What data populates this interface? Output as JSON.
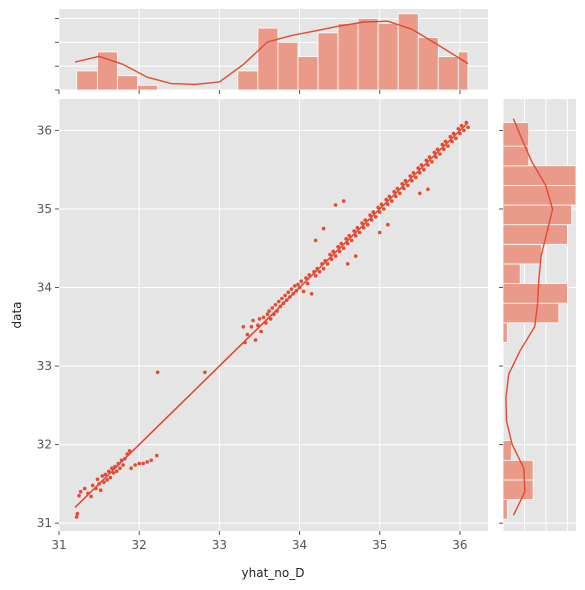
{
  "chart_data": {
    "type": "scatter",
    "title": "",
    "xlabel": "yhat_no_D",
    "ylabel": "data",
    "xlim": [
      31.0,
      36.35
    ],
    "ylim": [
      30.9,
      36.4
    ],
    "xticks": [
      "31",
      "32",
      "33",
      "34",
      "35",
      "36"
    ],
    "yticks": [
      "31",
      "32",
      "33",
      "34",
      "35",
      "36"
    ],
    "grid": true,
    "background": "#e5e5e5",
    "grid_color": "#ffffff",
    "point_color": "#e24a33",
    "bar_color": "#e99a89",
    "regression_line": {
      "x": [
        31.2,
        36.1
      ],
      "y": [
        31.2,
        36.1
      ]
    },
    "points": [
      [
        31.22,
        31.08
      ],
      [
        31.23,
        31.12
      ],
      [
        31.25,
        31.35
      ],
      [
        31.27,
        31.4
      ],
      [
        31.32,
        31.44
      ],
      [
        31.36,
        31.38
      ],
      [
        31.4,
        31.34
      ],
      [
        31.42,
        31.48
      ],
      [
        31.46,
        31.44
      ],
      [
        31.48,
        31.56
      ],
      [
        31.5,
        31.5
      ],
      [
        31.52,
        31.42
      ],
      [
        31.54,
        31.6
      ],
      [
        31.56,
        31.52
      ],
      [
        31.58,
        31.62
      ],
      [
        31.6,
        31.55
      ],
      [
        31.62,
        31.66
      ],
      [
        31.64,
        31.58
      ],
      [
        31.66,
        31.7
      ],
      [
        31.68,
        31.64
      ],
      [
        31.7,
        31.72
      ],
      [
        31.72,
        31.66
      ],
      [
        31.74,
        31.76
      ],
      [
        31.76,
        31.7
      ],
      [
        31.78,
        31.8
      ],
      [
        31.8,
        31.74
      ],
      [
        31.82,
        31.82
      ],
      [
        31.85,
        31.88
      ],
      [
        31.88,
        31.92
      ],
      [
        31.9,
        31.7
      ],
      [
        31.95,
        31.74
      ],
      [
        32.0,
        31.76
      ],
      [
        32.05,
        31.76
      ],
      [
        32.1,
        31.78
      ],
      [
        32.15,
        31.8
      ],
      [
        32.22,
        31.86
      ],
      [
        32.23,
        32.92
      ],
      [
        32.82,
        32.92
      ],
      [
        33.3,
        33.5
      ],
      [
        33.32,
        33.3
      ],
      [
        33.35,
        33.4
      ],
      [
        33.4,
        33.5
      ],
      [
        33.42,
        33.58
      ],
      [
        33.45,
        33.33
      ],
      [
        33.48,
        33.52
      ],
      [
        33.5,
        33.6
      ],
      [
        33.52,
        33.44
      ],
      [
        33.55,
        33.62
      ],
      [
        33.58,
        33.55
      ],
      [
        33.6,
        33.66
      ],
      [
        33.62,
        33.7
      ],
      [
        33.64,
        33.6
      ],
      [
        33.66,
        33.74
      ],
      [
        33.68,
        33.66
      ],
      [
        33.7,
        33.78
      ],
      [
        33.72,
        33.7
      ],
      [
        33.74,
        33.82
      ],
      [
        33.76,
        33.76
      ],
      [
        33.78,
        33.86
      ],
      [
        33.8,
        33.8
      ],
      [
        33.82,
        33.9
      ],
      [
        33.84,
        33.84
      ],
      [
        33.86,
        33.94
      ],
      [
        33.88,
        33.88
      ],
      [
        33.9,
        33.98
      ],
      [
        33.92,
        33.92
      ],
      [
        33.94,
        34.02
      ],
      [
        33.96,
        33.96
      ],
      [
        33.98,
        34.04
      ],
      [
        34.0,
        34.0
      ],
      [
        34.02,
        34.08
      ],
      [
        34.05,
        33.95
      ],
      [
        34.08,
        34.12
      ],
      [
        34.1,
        34.05
      ],
      [
        34.12,
        34.16
      ],
      [
        34.15,
        33.92
      ],
      [
        34.18,
        34.2
      ],
      [
        34.2,
        34.15
      ],
      [
        34.22,
        34.24
      ],
      [
        34.25,
        34.2
      ],
      [
        34.28,
        34.3
      ],
      [
        34.3,
        34.24
      ],
      [
        34.32,
        34.34
      ],
      [
        34.35,
        34.3
      ],
      [
        34.38,
        34.42
      ],
      [
        34.4,
        34.36
      ],
      [
        34.42,
        34.46
      ],
      [
        34.45,
        34.4
      ],
      [
        34.48,
        34.52
      ],
      [
        34.5,
        34.46
      ],
      [
        34.52,
        34.56
      ],
      [
        34.55,
        34.5
      ],
      [
        34.58,
        34.62
      ],
      [
        34.6,
        34.56
      ],
      [
        34.62,
        34.66
      ],
      [
        34.65,
        34.6
      ],
      [
        34.68,
        34.72
      ],
      [
        34.7,
        34.66
      ],
      [
        34.72,
        34.76
      ],
      [
        34.75,
        34.7
      ],
      [
        34.78,
        34.82
      ],
      [
        34.8,
        34.76
      ],
      [
        34.82,
        34.86
      ],
      [
        34.85,
        34.8
      ],
      [
        34.88,
        34.92
      ],
      [
        34.9,
        34.86
      ],
      [
        34.92,
        34.96
      ],
      [
        34.95,
        34.9
      ],
      [
        34.98,
        35.02
      ],
      [
        35.0,
        34.96
      ],
      [
        35.02,
        35.06
      ],
      [
        35.05,
        35.0
      ],
      [
        35.08,
        35.12
      ],
      [
        35.1,
        35.06
      ],
      [
        35.12,
        35.16
      ],
      [
        35.15,
        35.1
      ],
      [
        35.18,
        35.22
      ],
      [
        35.2,
        35.16
      ],
      [
        35.22,
        35.26
      ],
      [
        35.25,
        35.2
      ],
      [
        35.28,
        35.32
      ],
      [
        35.3,
        35.26
      ],
      [
        35.32,
        35.36
      ],
      [
        35.35,
        35.3
      ],
      [
        35.38,
        35.42
      ],
      [
        35.4,
        35.36
      ],
      [
        35.42,
        35.46
      ],
      [
        35.45,
        35.4
      ],
      [
        35.48,
        35.52
      ],
      [
        35.5,
        35.46
      ],
      [
        35.52,
        35.56
      ],
      [
        35.55,
        35.5
      ],
      [
        35.58,
        35.62
      ],
      [
        35.6,
        35.56
      ],
      [
        35.62,
        35.66
      ],
      [
        35.65,
        35.6
      ],
      [
        35.68,
        35.72
      ],
      [
        35.7,
        35.66
      ],
      [
        35.72,
        35.76
      ],
      [
        35.75,
        35.7
      ],
      [
        35.78,
        35.82
      ],
      [
        35.8,
        35.76
      ],
      [
        35.82,
        35.86
      ],
      [
        35.85,
        35.8
      ],
      [
        35.88,
        35.92
      ],
      [
        35.9,
        35.86
      ],
      [
        35.92,
        35.96
      ],
      [
        35.95,
        35.9
      ],
      [
        35.98,
        36.02
      ],
      [
        36.0,
        35.96
      ],
      [
        36.02,
        36.06
      ],
      [
        36.05,
        36.0
      ],
      [
        36.08,
        36.1
      ],
      [
        36.1,
        36.04
      ],
      [
        34.2,
        34.6
      ],
      [
        34.3,
        34.75
      ],
      [
        34.45,
        35.05
      ],
      [
        34.55,
        35.1
      ],
      [
        34.6,
        34.3
      ],
      [
        34.7,
        34.4
      ],
      [
        35.0,
        34.7
      ],
      [
        35.1,
        34.8
      ],
      [
        35.5,
        35.2
      ],
      [
        35.6,
        35.25
      ]
    ],
    "top_histogram": {
      "bin_edges": [
        31.22,
        31.48,
        31.73,
        31.98,
        32.23,
        32.48,
        32.73,
        32.98,
        33.23,
        33.48,
        33.73,
        33.98,
        34.23,
        34.48,
        34.73,
        34.98,
        35.23,
        35.48,
        35.73,
        35.98,
        36.1
      ],
      "counts": [
        4,
        8,
        3,
        1,
        0,
        0,
        0,
        0,
        4,
        13,
        10,
        7,
        12,
        14,
        15,
        14,
        16,
        11,
        7,
        8
      ]
    },
    "top_kde": {
      "x": [
        31.2,
        31.5,
        31.8,
        32.1,
        32.4,
        32.7,
        33.0,
        33.3,
        33.6,
        33.9,
        34.2,
        34.5,
        34.8,
        35.1,
        35.4,
        35.7,
        36.1
      ],
      "y": [
        0.35,
        0.42,
        0.32,
        0.16,
        0.08,
        0.07,
        0.1,
        0.32,
        0.6,
        0.68,
        0.74,
        0.8,
        0.85,
        0.86,
        0.76,
        0.58,
        0.33
      ]
    },
    "right_histogram": {
      "bin_edges": [
        31.05,
        31.3,
        31.55,
        31.8,
        32.05,
        32.3,
        32.55,
        32.8,
        33.05,
        33.3,
        33.55,
        33.8,
        34.05,
        34.3,
        34.55,
        34.8,
        35.05,
        35.3,
        35.55,
        35.8,
        36.1
      ],
      "counts": [
        1,
        7,
        7,
        2,
        0,
        0,
        0,
        0,
        0,
        1,
        13,
        15,
        4,
        9,
        15,
        16,
        17,
        17,
        6,
        6
      ]
    },
    "right_kde": {
      "y": [
        31.1,
        31.4,
        31.7,
        32.0,
        32.3,
        32.6,
        32.9,
        33.2,
        33.5,
        33.8,
        34.1,
        34.4,
        34.7,
        35.0,
        35.3,
        35.6,
        35.9,
        36.15
      ],
      "x": [
        0.18,
        0.38,
        0.36,
        0.16,
        0.06,
        0.05,
        0.1,
        0.3,
        0.55,
        0.6,
        0.62,
        0.66,
        0.76,
        0.86,
        0.74,
        0.5,
        0.32,
        0.18
      ]
    }
  }
}
